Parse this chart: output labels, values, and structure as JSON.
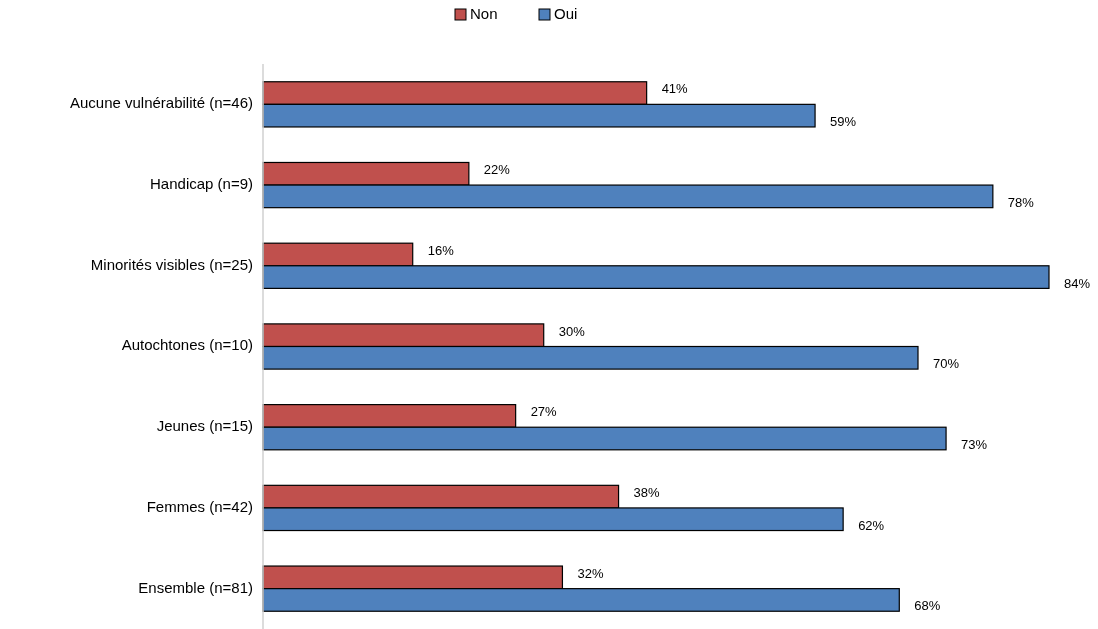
{
  "chart_data": {
    "type": "bar",
    "orientation": "horizontal",
    "legend": "top",
    "tick_labels": "y",
    "categories": [
      "Aucune vulnérabilité (n=46)",
      "Handicap (n=9)",
      "Minorités visibles (n=25)",
      "Autochtones (n=10)",
      "Jeunes (n=15)",
      "Femmes (n=42)",
      "Ensemble (n=81)"
    ],
    "series": [
      {
        "name": "Non",
        "color": "#c0504d",
        "values": [
          41,
          22,
          16,
          30,
          27,
          38,
          32
        ],
        "value_labels": [
          "41%",
          "22%",
          "16%",
          "30%",
          "27%",
          "38%",
          "32%"
        ]
      },
      {
        "name": "Oui",
        "color": "#4f81bd",
        "values": [
          59,
          78,
          84,
          70,
          73,
          62,
          68
        ],
        "value_labels": [
          "59%",
          "78%",
          "84%",
          "70%",
          "73%",
          "62%",
          "68%"
        ]
      }
    ]
  }
}
